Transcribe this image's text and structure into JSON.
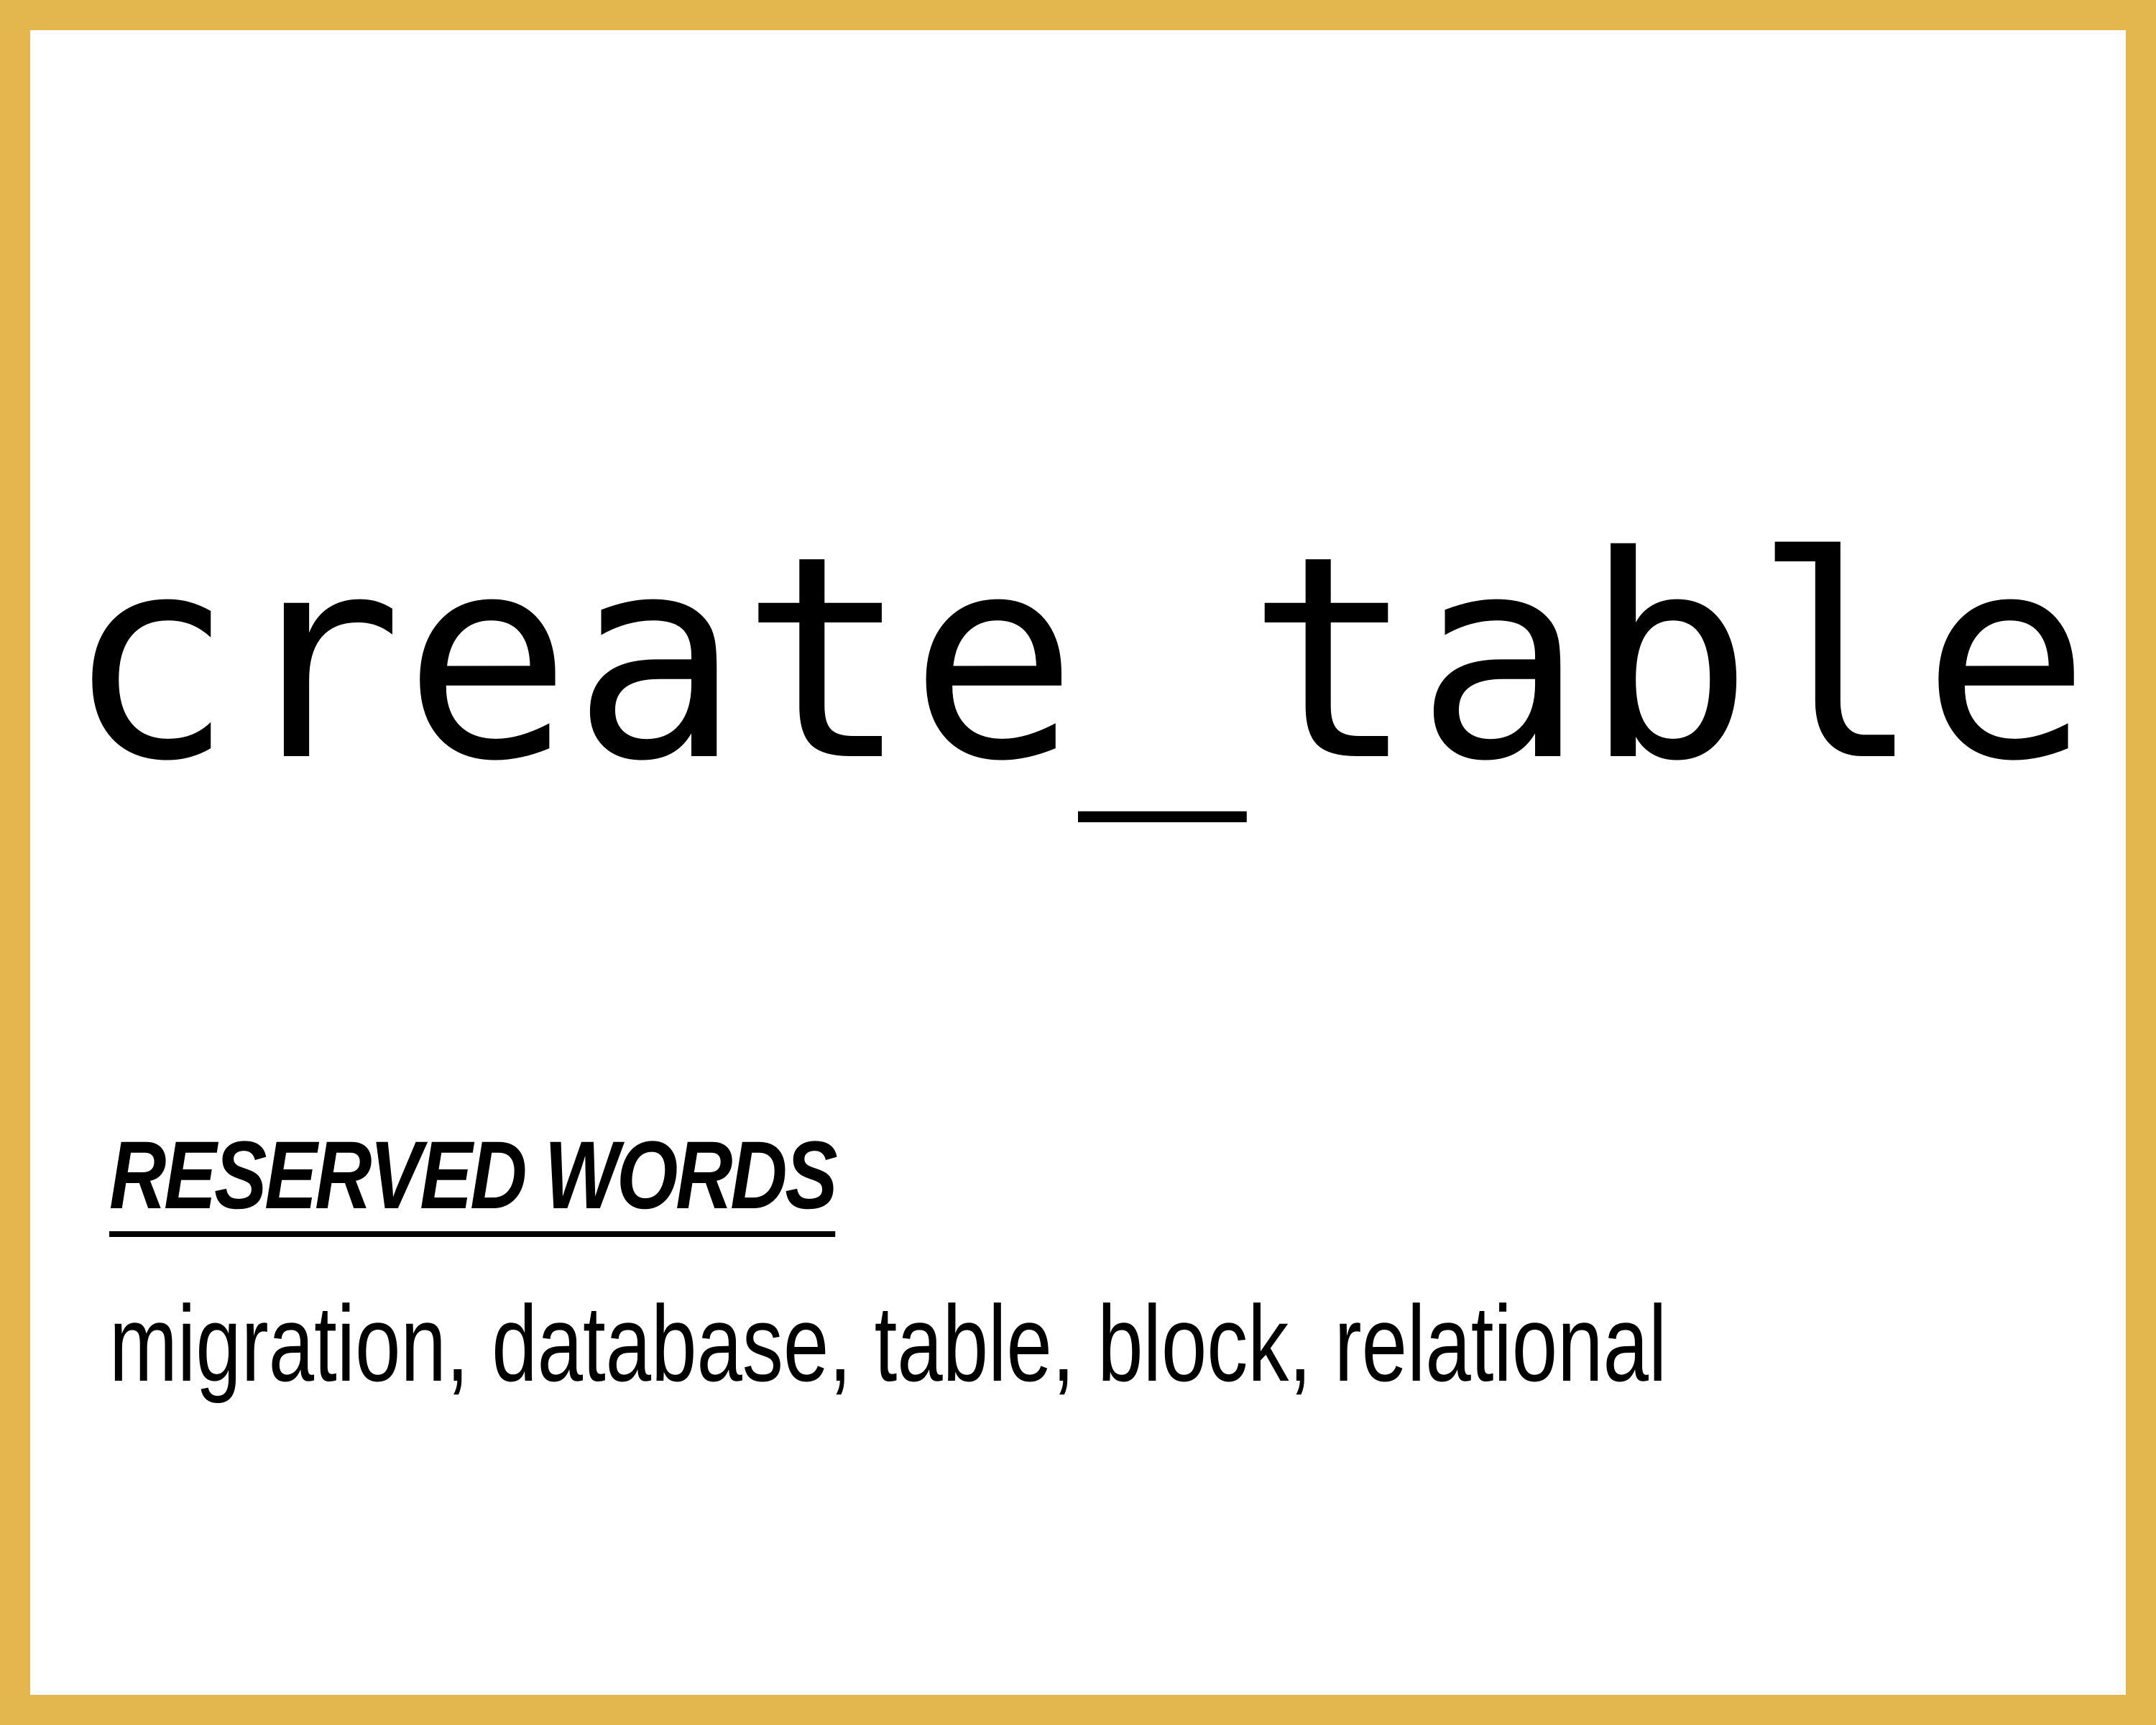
{
  "card": {
    "term": "create_table",
    "section_label": "RESERVED WORDS",
    "keywords": "migration, database, table, block, relational",
    "border_color": "#E3B74E"
  }
}
